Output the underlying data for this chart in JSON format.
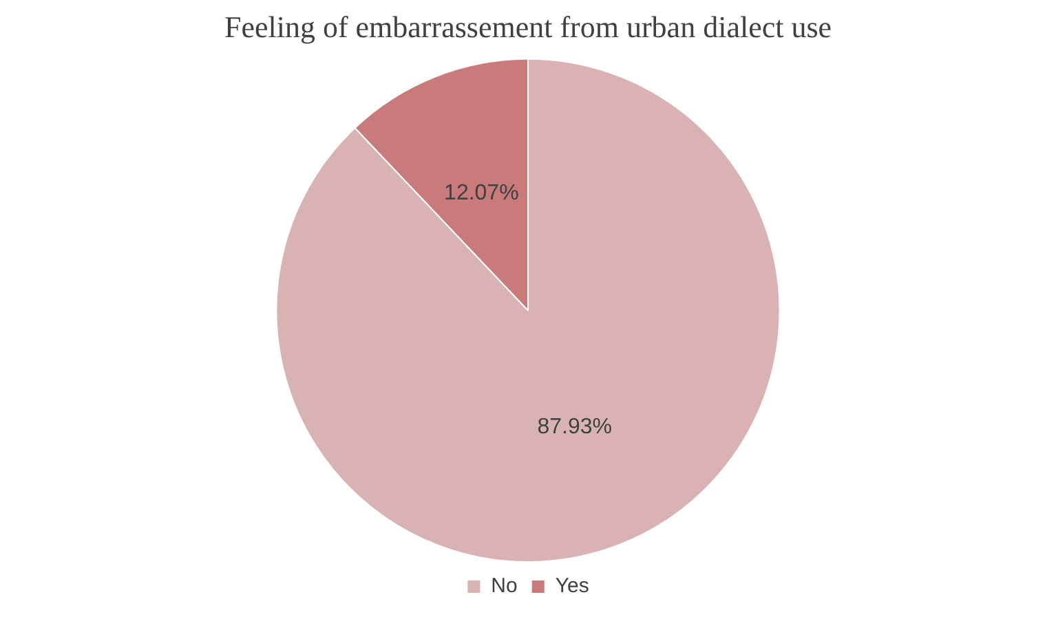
{
  "chart_data": {
    "type": "pie",
    "title": "Feeling of embarrassement from urban dialect use",
    "categories": [
      "No",
      "Yes"
    ],
    "values": [
      87.93,
      12.07
    ],
    "colors": [
      "#d9b3b3",
      "#c97a7a"
    ],
    "value_labels": [
      "87.93%",
      "12.07%"
    ],
    "legend": "bottom"
  }
}
